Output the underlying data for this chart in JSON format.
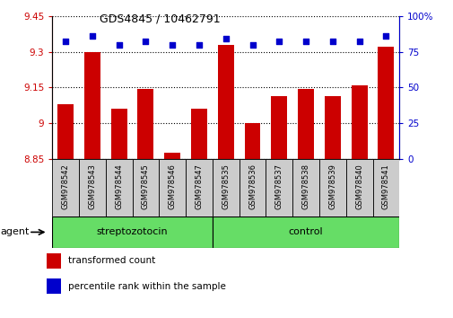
{
  "title": "GDS4845 / 10462791",
  "samples": [
    "GSM978542",
    "GSM978543",
    "GSM978544",
    "GSM978545",
    "GSM978546",
    "GSM978547",
    "GSM978535",
    "GSM978536",
    "GSM978537",
    "GSM978538",
    "GSM978539",
    "GSM978540",
    "GSM978541"
  ],
  "bar_values": [
    9.08,
    9.3,
    9.06,
    9.145,
    8.875,
    9.06,
    9.33,
    9.0,
    9.115,
    9.145,
    9.115,
    9.16,
    9.32
  ],
  "percentile_values": [
    82,
    86,
    80,
    82,
    80,
    80,
    84,
    80,
    82,
    82,
    82,
    82,
    86
  ],
  "ylim_left": [
    8.85,
    9.45
  ],
  "ylim_right": [
    0,
    100
  ],
  "yticks_left": [
    8.85,
    9.0,
    9.15,
    9.3,
    9.45
  ],
  "ytick_labels_left": [
    "8.85",
    "9",
    "9.15",
    "9.3",
    "9.45"
  ],
  "yticks_right": [
    0,
    25,
    50,
    75,
    100
  ],
  "ytick_labels_right": [
    "0",
    "25",
    "50",
    "75",
    "100%"
  ],
  "bar_color": "#cc0000",
  "dot_color": "#0000cc",
  "bar_bottom": 8.85,
  "groups": [
    {
      "label": "streptozotocin",
      "start": 0,
      "end": 6
    },
    {
      "label": "control",
      "start": 6,
      "end": 13
    }
  ],
  "group_color": "#66dd66",
  "grid_color": "#000000",
  "tick_label_color_left": "#cc0000",
  "tick_label_color_right": "#0000cc",
  "sample_box_color": "#cccccc",
  "legend_items": [
    {
      "label": "transformed count",
      "color": "#cc0000"
    },
    {
      "label": "percentile rank within the sample",
      "color": "#0000cc"
    }
  ]
}
